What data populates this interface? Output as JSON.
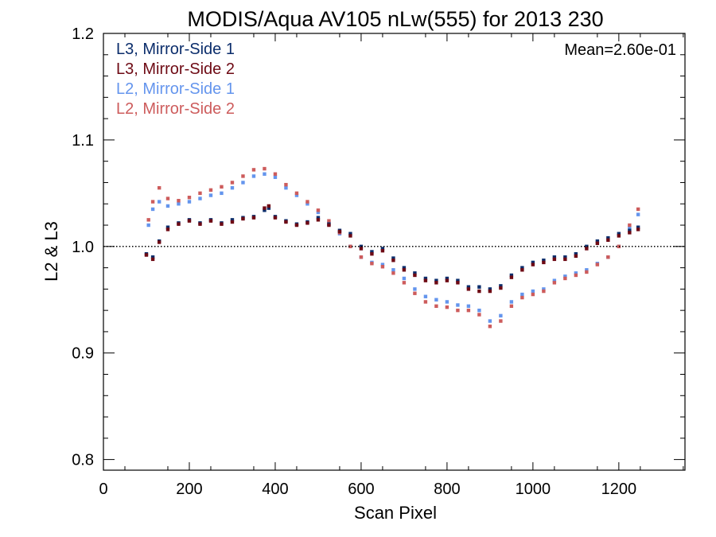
{
  "chart_data": {
    "type": "scatter",
    "title": "MODIS/Aqua AV105 nLw(555) for 2013 230",
    "xlabel": "Scan Pixel",
    "ylabel": "L2 & L3",
    "xlim": [
      0,
      1354
    ],
    "ylim": [
      0.79,
      1.2
    ],
    "xticks": [
      0,
      200,
      400,
      600,
      800,
      1000,
      1200
    ],
    "xtick_labels": [
      "0",
      "200",
      "400",
      "600",
      "800",
      "1000",
      "1200"
    ],
    "yticks": [
      0.8,
      0.9,
      1.0,
      1.1,
      1.2
    ],
    "ytick_labels": [
      "0.8",
      "0.9",
      "1.0",
      "1.1",
      "1.2"
    ],
    "reference_line": {
      "y": 1.0,
      "style": "dotted"
    },
    "annotation": "Mean=2.60e-01",
    "annotation_color": "#cd5c5c",
    "legend_position": "top-left",
    "series": [
      {
        "name": "L3, Mirror-Side 1",
        "color": "#0b2d6b",
        "x": [
          100,
          115,
          130,
          150,
          175,
          200,
          225,
          250,
          275,
          300,
          325,
          350,
          375,
          385,
          400,
          425,
          450,
          475,
          500,
          525,
          550,
          575,
          600,
          625,
          650,
          675,
          700,
          725,
          750,
          775,
          800,
          825,
          850,
          875,
          900,
          925,
          950,
          975,
          1000,
          1025,
          1050,
          1075,
          1100,
          1125,
          1150,
          1175,
          1200,
          1225,
          1245
        ],
        "y": [
          0.993,
          0.99,
          1.005,
          1.018,
          1.022,
          1.025,
          1.022,
          1.025,
          1.022,
          1.025,
          1.027,
          1.028,
          1.034,
          1.036,
          1.028,
          1.024,
          1.021,
          1.023,
          1.027,
          1.021,
          1.015,
          1.012,
          1.0,
          0.995,
          0.998,
          0.989,
          0.98,
          0.975,
          0.97,
          0.968,
          0.97,
          0.968,
          0.962,
          0.962,
          0.96,
          0.963,
          0.973,
          0.98,
          0.985,
          0.987,
          0.99,
          0.99,
          0.993,
          1.0,
          1.005,
          1.008,
          1.012,
          1.015,
          1.018
        ]
      },
      {
        "name": "L3, Mirror-Side 2",
        "color": "#6e0a14",
        "x": [
          100,
          115,
          130,
          150,
          175,
          200,
          225,
          250,
          275,
          300,
          325,
          350,
          375,
          385,
          400,
          425,
          450,
          475,
          500,
          525,
          550,
          575,
          600,
          625,
          650,
          675,
          700,
          725,
          750,
          775,
          800,
          825,
          850,
          875,
          900,
          925,
          950,
          975,
          1000,
          1025,
          1050,
          1075,
          1100,
          1125,
          1150,
          1175,
          1200,
          1225,
          1245
        ],
        "y": [
          0.992,
          0.988,
          1.004,
          1.016,
          1.021,
          1.024,
          1.021,
          1.024,
          1.021,
          1.023,
          1.026,
          1.027,
          1.036,
          1.038,
          1.027,
          1.023,
          1.02,
          1.022,
          1.025,
          1.02,
          1.014,
          1.01,
          0.998,
          0.993,
          0.996,
          0.987,
          0.978,
          0.973,
          0.968,
          0.966,
          0.968,
          0.966,
          0.96,
          0.958,
          0.958,
          0.961,
          0.971,
          0.978,
          0.983,
          0.985,
          0.988,
          0.988,
          0.991,
          0.998,
          1.003,
          1.006,
          1.01,
          1.013,
          1.016
        ]
      },
      {
        "name": "L2, Mirror-Side 1",
        "color": "#6495ed",
        "x": [
          105,
          115,
          130,
          150,
          175,
          200,
          225,
          250,
          275,
          300,
          325,
          350,
          375,
          400,
          425,
          450,
          475,
          500,
          525,
          550,
          575,
          600,
          625,
          650,
          675,
          700,
          725,
          750,
          775,
          800,
          825,
          850,
          875,
          900,
          925,
          950,
          975,
          1000,
          1025,
          1050,
          1075,
          1100,
          1125,
          1150,
          1175,
          1200,
          1225,
          1245
        ],
        "y": [
          1.02,
          1.035,
          1.042,
          1.038,
          1.04,
          1.042,
          1.045,
          1.048,
          1.05,
          1.055,
          1.06,
          1.066,
          1.068,
          1.065,
          1.055,
          1.048,
          1.04,
          1.032,
          1.022,
          1.012,
          1.0,
          0.99,
          0.985,
          0.983,
          0.978,
          0.97,
          0.96,
          0.953,
          0.95,
          0.948,
          0.945,
          0.944,
          0.94,
          0.93,
          0.935,
          0.948,
          0.955,
          0.958,
          0.96,
          0.968,
          0.972,
          0.975,
          0.978,
          0.984,
          0.99,
          1.0,
          1.018,
          1.03
        ]
      },
      {
        "name": "L2, Mirror-Side 2",
        "color": "#cd5c5c",
        "x": [
          105,
          115,
          130,
          150,
          175,
          200,
          225,
          250,
          275,
          300,
          325,
          350,
          375,
          400,
          425,
          450,
          475,
          500,
          525,
          550,
          575,
          600,
          625,
          650,
          675,
          700,
          725,
          750,
          775,
          800,
          825,
          850,
          875,
          900,
          925,
          950,
          975,
          1000,
          1025,
          1050,
          1075,
          1100,
          1125,
          1150,
          1175,
          1200,
          1225,
          1245
        ],
        "y": [
          1.025,
          1.042,
          1.055,
          1.045,
          1.043,
          1.046,
          1.05,
          1.053,
          1.056,
          1.06,
          1.066,
          1.072,
          1.073,
          1.068,
          1.058,
          1.05,
          1.042,
          1.034,
          1.024,
          1.013,
          1.0,
          0.99,
          0.984,
          0.981,
          0.975,
          0.966,
          0.956,
          0.948,
          0.944,
          0.943,
          0.94,
          0.94,
          0.936,
          0.925,
          0.93,
          0.944,
          0.952,
          0.955,
          0.958,
          0.966,
          0.97,
          0.973,
          0.976,
          0.983,
          0.99,
          1.0,
          1.02,
          1.035
        ]
      }
    ]
  }
}
